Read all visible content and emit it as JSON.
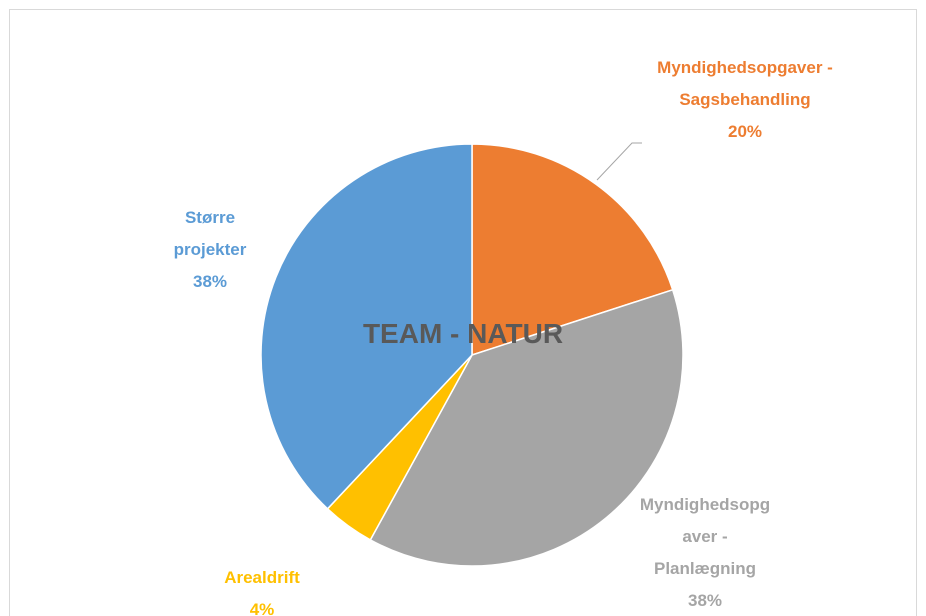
{
  "chart_data": {
    "type": "pie",
    "title": "TEAM - NATUR",
    "categories": [
      "Myndighedsopgaver - Sagsbehandling",
      "Myndighedsopgaver - Planlægning",
      "Arealdrift",
      "Større projekter"
    ],
    "values": [
      20,
      38,
      4,
      38
    ],
    "value_labels": [
      "20%",
      "38%",
      "4%",
      "38%"
    ],
    "colors": [
      "#ED7D31",
      "#A5A5A5",
      "#FFC000",
      "#5B9BD5"
    ]
  }
}
